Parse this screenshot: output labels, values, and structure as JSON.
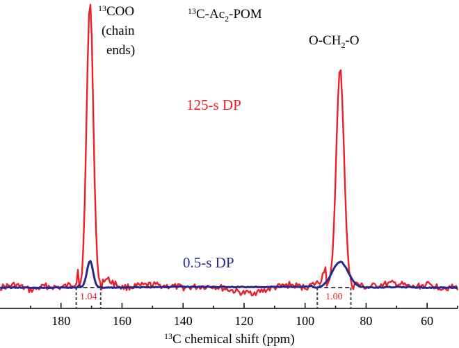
{
  "chart_data": {
    "type": "line",
    "title_sup": "13",
    "title_main": "C-Ac",
    "title_sub": "2",
    "title_tail": "-POM",
    "xlabel_sup": "13",
    "xlabel_main": "C chemical shift (ppm)",
    "xlim": [
      200,
      50
    ],
    "x_reversed": true,
    "xticks": [
      180,
      160,
      140,
      120,
      100,
      80,
      60
    ],
    "xtick_labels": [
      "180",
      "160",
      "140",
      "120",
      "100",
      "80",
      "60"
    ],
    "ylabel": "",
    "y_axis_shown": false,
    "grid": false,
    "colors": {
      "red": "#e8202a",
      "blue": "#27288f",
      "axis": "#000000",
      "integral": "#444444"
    },
    "series": [
      {
        "name": "125-s DP",
        "color": "#e8202a",
        "peaks": [
          {
            "center": 170.5,
            "height": 1.0,
            "width": 1.1
          },
          {
            "center": 88.5,
            "height": 0.76,
            "width": 1.3
          }
        ],
        "x": [
          200,
          195,
          190,
          185,
          180,
          175,
          172,
          171,
          170.5,
          170,
          169,
          168,
          165,
          160,
          150,
          140,
          130,
          120,
          115,
          110,
          105,
          100,
          95,
          92,
          90,
          89,
          88.5,
          88,
          87,
          85,
          80,
          75,
          70,
          65,
          60,
          55,
          50
        ],
        "y": [
          0.0,
          0.01,
          -0.01,
          0.005,
          0.0,
          0.015,
          0.3,
          0.85,
          1.0,
          0.85,
          0.2,
          0.02,
          0.03,
          0.0,
          0.01,
          0.0,
          0.005,
          -0.02,
          -0.015,
          0.0,
          0.01,
          0.0,
          0.02,
          0.12,
          0.45,
          0.7,
          0.76,
          0.7,
          0.3,
          0.02,
          0.0,
          0.01,
          0.015,
          0.0,
          0.01,
          0.0,
          0.0
        ]
      },
      {
        "name": "0.5-s DP",
        "color": "#27288f",
        "peaks": [
          {
            "center": 170.5,
            "height": 0.094,
            "width": 1.0
          },
          {
            "center": 88.5,
            "height": 0.09,
            "width": 2.6
          }
        ],
        "x": [
          200,
          180,
          175,
          172,
          170.5,
          169,
          167,
          160,
          140,
          120,
          100,
          95,
          92,
          90,
          88.5,
          87,
          85,
          80,
          70,
          60,
          50
        ],
        "y": [
          0.0,
          0.0,
          0.0,
          0.02,
          0.094,
          0.02,
          0.0,
          0.0,
          0.003,
          0.002,
          0.003,
          0.01,
          0.05,
          0.082,
          0.09,
          0.07,
          0.02,
          0.0,
          0.002,
          0.0,
          0.0
        ]
      }
    ],
    "integrals": [
      {
        "x_start": 175,
        "x_end": 167,
        "label": "1.04"
      },
      {
        "x_start": 96,
        "x_end": 85,
        "label": "1.00"
      }
    ],
    "annotations": [
      {
        "id": "coo",
        "sup": "13",
        "text": "COO",
        "lines": [
          "(chain",
          "ends)"
        ]
      },
      {
        "id": "och2o",
        "text_a": "O-CH",
        "sub": "2",
        "text_b": "-O"
      }
    ]
  }
}
